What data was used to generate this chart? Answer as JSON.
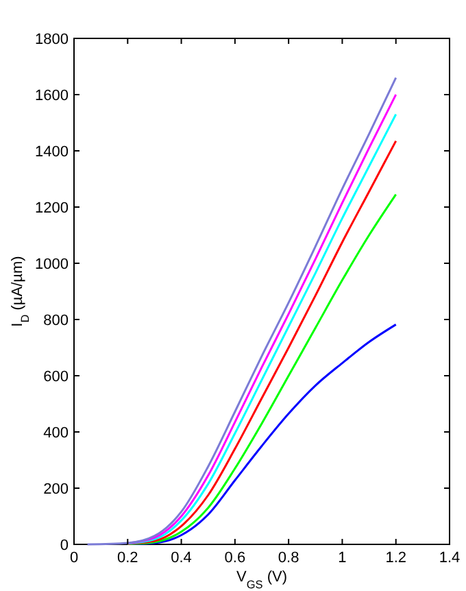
{
  "chart_data": {
    "type": "line",
    "xlabel": "V$_{GS}$ (V)",
    "ylabel": "I$_{D}$ (µA/µm)",
    "xlim": [
      0,
      1.4
    ],
    "ylim": [
      0,
      1800
    ],
    "xticks": [
      0,
      0.2,
      0.4,
      0.6,
      0.8,
      1,
      1.2,
      1.4
    ],
    "yticks": [
      0,
      200,
      400,
      600,
      800,
      1000,
      1200,
      1400,
      1600,
      1800
    ],
    "grid": false,
    "marker": "none",
    "line_style": "solid",
    "x": [
      0.05,
      0.2,
      0.3,
      0.4,
      0.5,
      0.6,
      0.7,
      0.8,
      0.9,
      1.0,
      1.1,
      1.2
    ],
    "series": [
      {
        "color": "#7b7bd6",
        "values": [
          0,
          5,
          30,
          116,
          277,
          472,
          670,
          860,
          1060,
          1265,
          1460,
          1660
        ]
      },
      {
        "color": "#ff00ff",
        "values": [
          null,
          4,
          24,
          100,
          245,
          435,
          630,
          820,
          1015,
          1215,
          1410,
          1600
        ]
      },
      {
        "color": "#00ffff",
        "values": [
          null,
          3,
          18,
          85,
          215,
          395,
          585,
          775,
          965,
          1160,
          1345,
          1530
        ]
      },
      {
        "color": "#ff0000",
        "values": [
          null,
          2,
          12,
          65,
          175,
          340,
          520,
          700,
          885,
          1075,
          1255,
          1435
        ]
      },
      {
        "color": "#00ff00",
        "values": [
          null,
          1,
          8,
          45,
          130,
          270,
          430,
          600,
          770,
          940,
          1100,
          1245
        ]
      },
      {
        "color": "#0000ff",
        "values": [
          null,
          1,
          5,
          33,
          106,
          228,
          350,
          465,
          565,
          645,
          720,
          782
        ]
      }
    ]
  }
}
